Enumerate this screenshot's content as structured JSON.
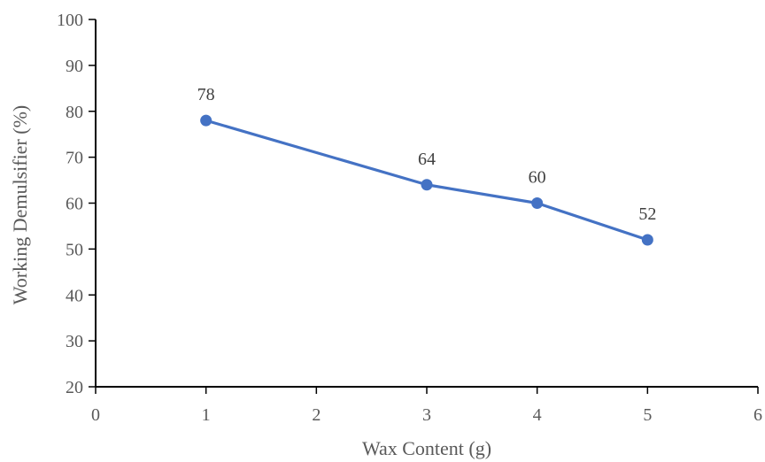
{
  "chart_data": {
    "type": "scatter",
    "title": "",
    "xlabel": "Wax Content (g)",
    "ylabel": "Working Demulsifier (%)",
    "xlim": [
      0,
      6
    ],
    "ylim": [
      20,
      100
    ],
    "x_ticks": [
      "0",
      "1",
      "2",
      "3",
      "4",
      "5",
      "6"
    ],
    "y_ticks": [
      "20",
      "30",
      "40",
      "50",
      "60",
      "70",
      "80",
      "90",
      "100"
    ],
    "grid": false,
    "legend": "none",
    "series": [
      {
        "x": [
          1,
          3,
          4,
          5
        ],
        "y": [
          78,
          64,
          60,
          52
        ],
        "data_labels": [
          "78",
          "64",
          "60",
          "52"
        ],
        "color": "#4472C4",
        "marker": "circle",
        "line": "solid"
      }
    ]
  }
}
